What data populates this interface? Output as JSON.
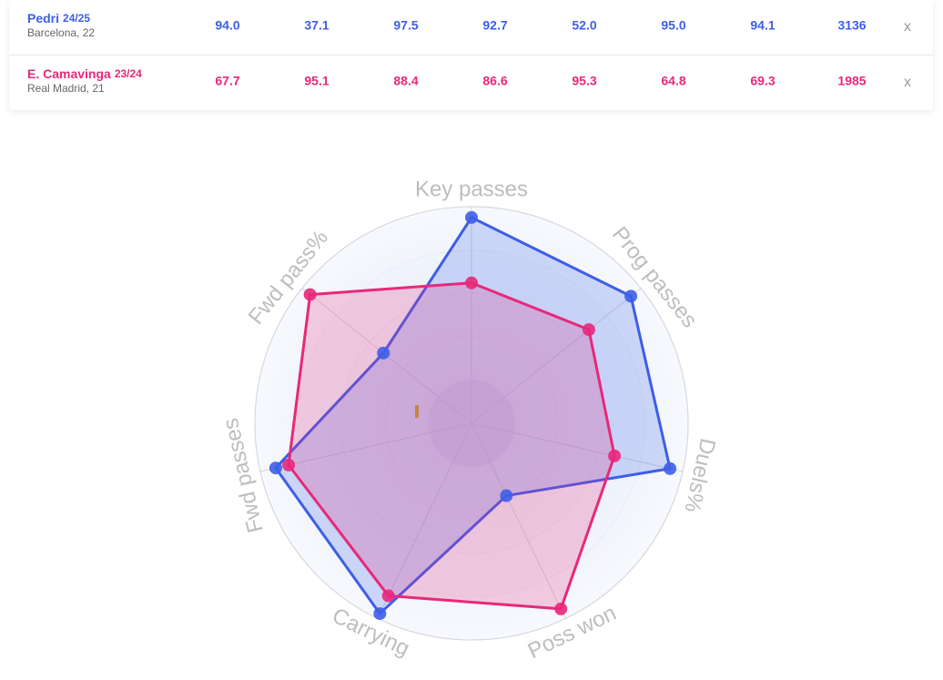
{
  "chart_data": {
    "type": "radar",
    "categories": [
      "Duels%",
      "Poss won",
      "Carrying",
      "Fwd passes",
      "Fwd pass%",
      "Key passes",
      "Prog passes"
    ],
    "rlim": [
      0,
      100
    ],
    "series": [
      {
        "name": "Pedri",
        "season": "24/25",
        "subtitle": "Barcelona, 22",
        "color": "#3d5ee8",
        "values": [
          94.0,
          37.1,
          97.5,
          92.7,
          52.0,
          95.0,
          94.1
        ],
        "value_labels": [
          "94.0",
          "37.1",
          "97.5",
          "92.7",
          "52.0",
          "95.0",
          "94.1"
        ],
        "minutes": 3136,
        "remove": "x"
      },
      {
        "name": "E. Camavinga",
        "season": "23/24",
        "subtitle": "Real Madrid, 21",
        "color": "#e8287a",
        "values": [
          67.7,
          95.1,
          88.4,
          86.6,
          95.3,
          64.8,
          69.3
        ],
        "value_labels": [
          "67.7",
          "95.1",
          "88.4",
          "86.6",
          "95.3",
          "64.8",
          "69.3"
        ],
        "minutes": 1985,
        "remove": "x"
      }
    ]
  }
}
